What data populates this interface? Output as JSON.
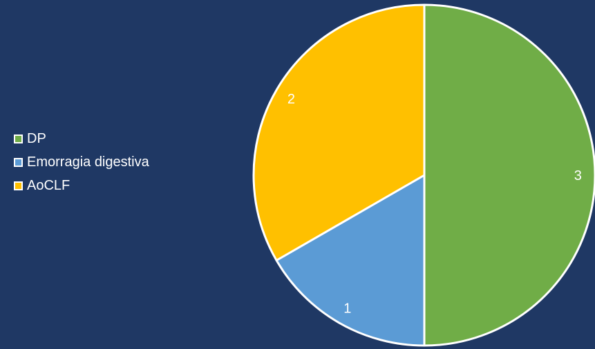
{
  "colors": {
    "background": "#1f3864",
    "border": "#ffffff"
  },
  "chart_data": {
    "type": "pie",
    "categories": [
      "DP",
      "Emorragia digestiva",
      "AoCLF"
    ],
    "values": [
      3,
      1,
      2
    ],
    "data_labels": [
      "3",
      "1",
      "2"
    ],
    "colors": [
      "#70ad47",
      "#5b9bd5",
      "#ffc000"
    ],
    "start_angle_deg": 0,
    "direction": "clockwise",
    "legend_position": "left",
    "title": ""
  }
}
